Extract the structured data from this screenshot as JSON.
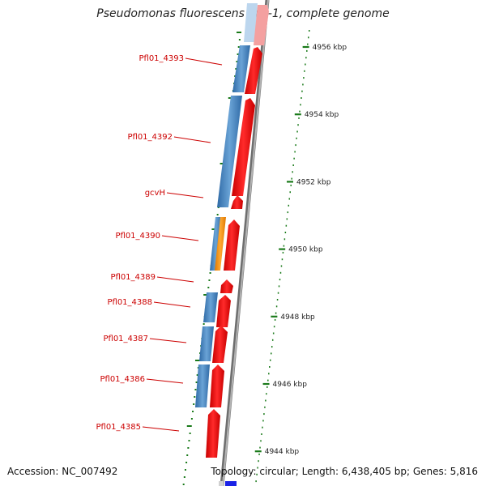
{
  "title": "Pseudomonas fluorescens PfO-1, complete genome",
  "footer": {
    "accession": "Accession: NC_007492",
    "summary": "Topology: circular; Length: 6,438,405 bp; Genes: 5,816"
  },
  "gene_labels": [
    "Pfl01_4393",
    "Pfl01_4392",
    "gcvH",
    "Pfl01_4390",
    "Pfl01_4389",
    "Pfl01_4388",
    "Pfl01_4387",
    "Pfl01_4386",
    "Pfl01_4385"
  ],
  "scale": {
    "unit": "kbp",
    "major_ticks_kbp": [
      4956,
      4954,
      4952,
      4950,
      4948,
      4946,
      4944
    ]
  },
  "colors": {
    "forward_feature": "#e8080c",
    "reverse_feature": "#3f7fbf",
    "orange_feature": "#f08a12",
    "backbone": "#8a8a8a",
    "ticks": "#1a7a1a",
    "labels": "#cc0000",
    "origin_marker": "#1a22e6"
  }
}
